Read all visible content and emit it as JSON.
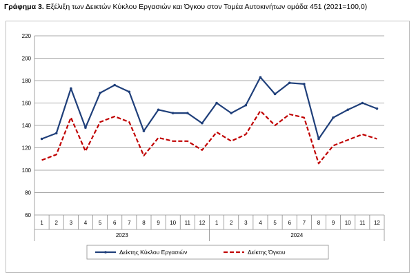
{
  "chart_data": {
    "type": "line",
    "title_bold": "Γράφημα 3.",
    "title_rest": " Εξέλιξη των Δεικτών Κύκλου Εργασιών και Όγκου στον Τομέα Αυτοκινήτων ομάδα 451 (2021=100,0)",
    "months": [
      "1",
      "2",
      "3",
      "4",
      "5",
      "6",
      "7",
      "8",
      "9",
      "10",
      "11",
      "12",
      "1",
      "2",
      "3",
      "4",
      "5",
      "6",
      "7",
      "8",
      "9",
      "10",
      "11",
      "12"
    ],
    "years": [
      "2023",
      "2024"
    ],
    "y_ticks": [
      "60",
      "80",
      "100",
      "120",
      "140",
      "160",
      "180",
      "200",
      "220"
    ],
    "ylim": [
      60,
      220
    ],
    "grid": true,
    "legend_position": "bottom",
    "series": [
      {
        "name": "Δείκτης Κύκλου Εργασιών",
        "color": "#1f3f7a",
        "style": "solid",
        "values": [
          128,
          133,
          173,
          138,
          169,
          176,
          170,
          135,
          154,
          151,
          151,
          142,
          160,
          151,
          158,
          183,
          168,
          178,
          177,
          128,
          147,
          154,
          160,
          155
        ]
      },
      {
        "name": "Δείκτης Όγκου",
        "color": "#c00000",
        "style": "dashed",
        "values": [
          109,
          114,
          147,
          117,
          143,
          148,
          143,
          113,
          129,
          126,
          126,
          118,
          134,
          126,
          132,
          153,
          140,
          150,
          147,
          106,
          122,
          127,
          132,
          128
        ]
      }
    ]
  }
}
